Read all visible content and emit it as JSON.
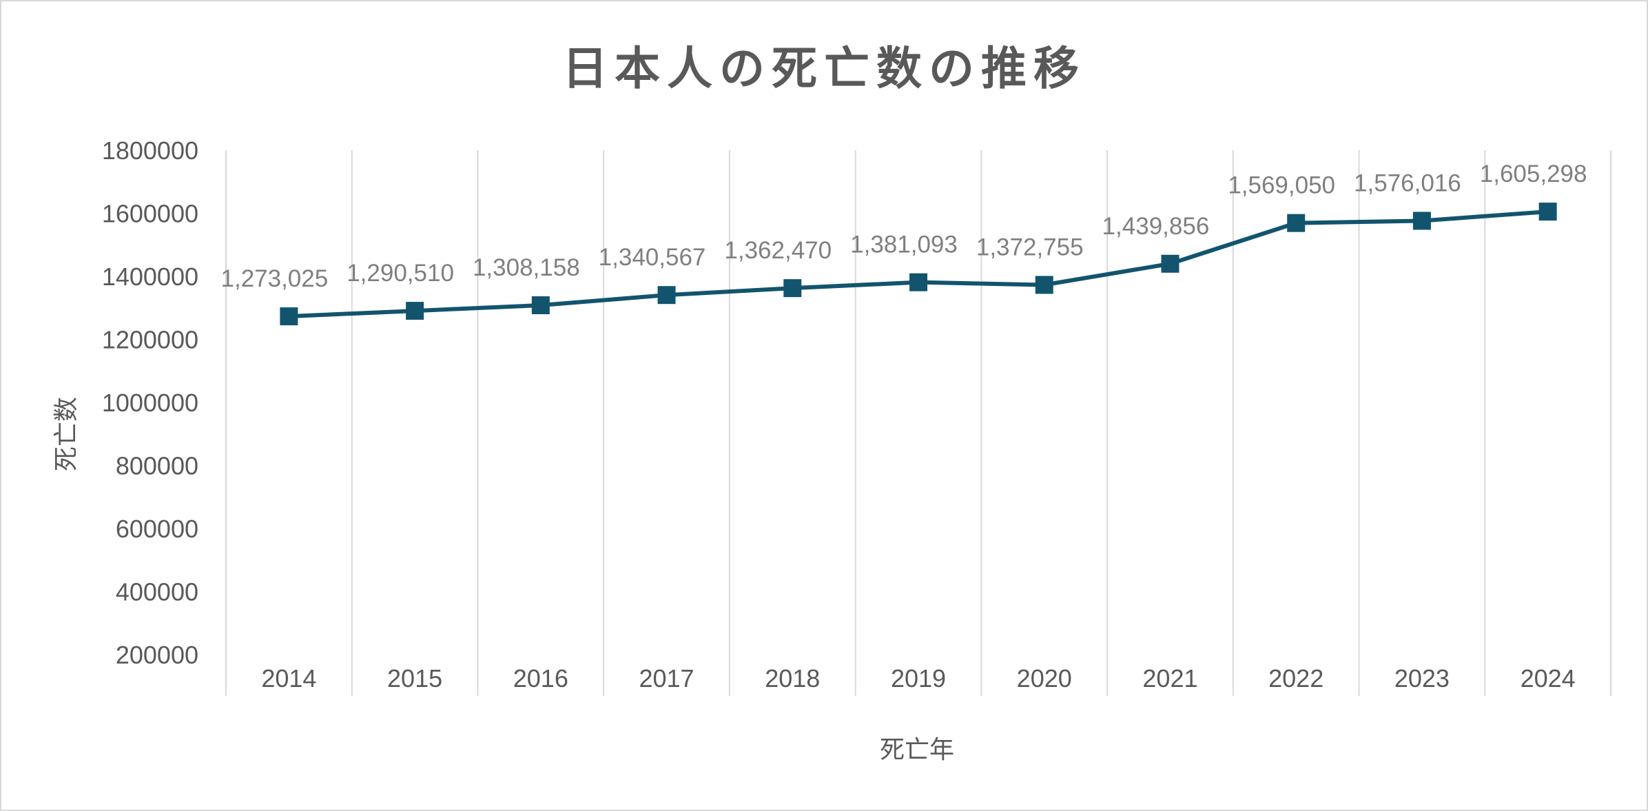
{
  "chart_data": {
    "type": "line",
    "title": "日本人の死亡数の推移",
    "xlabel": "死亡年",
    "ylabel": "死亡数",
    "categories": [
      "2014",
      "2015",
      "2016",
      "2017",
      "2018",
      "2019",
      "2020",
      "2021",
      "2022",
      "2023",
      "2024"
    ],
    "series": [
      {
        "values": [
          1273025,
          1290510,
          1308158,
          1340567,
          1362470,
          1381093,
          1372755,
          1439856,
          1569050,
          1576016,
          1605298
        ],
        "data_labels": [
          "1,273,025",
          "1,290,510",
          "1,308,158",
          "1,340,567",
          "1,362,470",
          "1,381,093",
          "1,372,755",
          "1,439,856",
          "1,569,050",
          "1,576,016",
          "1,605,298"
        ],
        "color": "#12546e",
        "marker": "square"
      }
    ],
    "ylim": [
      200000,
      1800000
    ],
    "yticks": [
      "200000",
      "400000",
      "600000",
      "800000",
      "1000000",
      "1200000",
      "1400000",
      "1600000",
      "1800000"
    ],
    "grid": "vertical",
    "legend": "none"
  },
  "colors": {
    "series": "#12546e",
    "text": "#595959",
    "data_label": "#7f7f7f",
    "grid": "#d9d9d9"
  }
}
